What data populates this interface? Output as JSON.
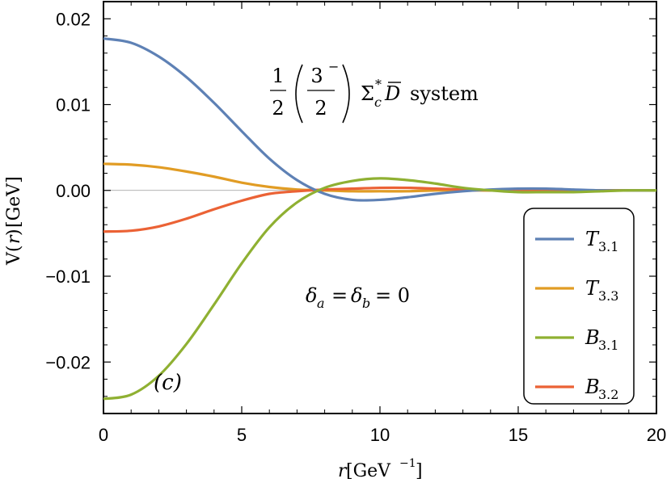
{
  "chart_data": {
    "type": "line",
    "title": "",
    "xlabel": {
      "var": "r",
      "unit": "[GeV",
      "unit_exp": "−1",
      "close": "]"
    },
    "ylabel": {
      "var_open": "V(",
      "var": "r",
      "var_close": ")",
      "unit": "[GeV]"
    },
    "xlim": [
      0,
      20
    ],
    "ylim": [
      -0.026,
      0.022
    ],
    "x_ticks": [
      0,
      5,
      10,
      15,
      20
    ],
    "x_tick_labels": [
      "0",
      "5",
      "10",
      "15",
      "20"
    ],
    "y_ticks": [
      0.02,
      0.01,
      0.0,
      -0.01,
      -0.02
    ],
    "y_tick_labels": [
      "0.02",
      "0.01",
      "0.00",
      "−0.01",
      "−0.02"
    ],
    "grid": false,
    "legend_position": "bottom-right",
    "annotations": {
      "system": {
        "frac1_num": "1",
        "frac1_den": "2",
        "frac2_num": "3",
        "frac2_num_sup": "−",
        "frac2_den": "2",
        "particles": "Σ",
        "particles_sup": "*",
        "particles_sub": "c",
        "dbar": "D",
        "tail": "system"
      },
      "delta": {
        "lhs": "δ",
        "lhs_sub": "a",
        "mid": "δ",
        "mid_sub": "b",
        "rhs": "= 0"
      },
      "panel": "(c)"
    },
    "series": [
      {
        "name": "T",
        "name_sub": "3.1",
        "color": "#5e81b5",
        "x": [
          0,
          1,
          2,
          3,
          4,
          5,
          6,
          7,
          8,
          9,
          10,
          11,
          12,
          13,
          14,
          15,
          16,
          17,
          18,
          19,
          20
        ],
        "y": [
          0.0177,
          0.0172,
          0.0156,
          0.0132,
          0.0102,
          0.0069,
          0.0037,
          0.0012,
          -0.0004,
          -0.0011,
          -0.0011,
          -0.0008,
          -0.0004,
          -0.0001,
          0.0001,
          0.0002,
          0.0002,
          0.0001,
          0.0,
          0.0,
          0.0
        ]
      },
      {
        "name": "T",
        "name_sub": "3.3",
        "color": "#e19c24",
        "x": [
          0,
          1,
          2,
          3,
          4,
          5,
          6,
          7,
          8,
          9,
          10,
          11,
          12,
          13,
          14,
          15,
          16,
          17,
          18,
          19,
          20
        ],
        "y": [
          0.0031,
          0.003,
          0.0027,
          0.0022,
          0.0016,
          0.0009,
          0.0004,
          0.0001,
          0.0,
          -0.0001,
          -0.0001,
          -0.0001,
          0.0,
          0.0,
          0.0,
          0.0,
          0.0,
          0.0,
          0.0,
          0.0,
          0.0
        ]
      },
      {
        "name": "B",
        "name_sub": "3.1",
        "color": "#8fb032",
        "x": [
          0,
          1,
          2,
          3,
          4,
          5,
          6,
          7,
          8,
          9,
          10,
          11,
          12,
          13,
          14,
          15,
          16,
          17,
          18,
          19,
          20
        ],
        "y": [
          -0.0243,
          -0.0238,
          -0.0216,
          -0.0179,
          -0.0133,
          -0.0085,
          -0.0043,
          -0.0014,
          0.0003,
          0.0011,
          0.0014,
          0.0012,
          0.0008,
          0.0003,
          0.0,
          -0.0002,
          -0.0002,
          -0.0002,
          -0.0001,
          0.0,
          0.0
        ]
      },
      {
        "name": "B",
        "name_sub": "3.2",
        "color": "#eb6235",
        "x": [
          0,
          1,
          2,
          3,
          4,
          5,
          6,
          7,
          8,
          9,
          10,
          11,
          12,
          13,
          14,
          15,
          16,
          17,
          18,
          19,
          20
        ],
        "y": [
          -0.0048,
          -0.0047,
          -0.0042,
          -0.0033,
          -0.0022,
          -0.0012,
          -0.0004,
          -0.0001,
          0.0001,
          0.0002,
          0.0003,
          0.0003,
          0.0002,
          0.0001,
          0.0,
          0.0,
          0.0,
          0.0,
          0.0,
          0.0,
          0.0
        ]
      }
    ]
  }
}
